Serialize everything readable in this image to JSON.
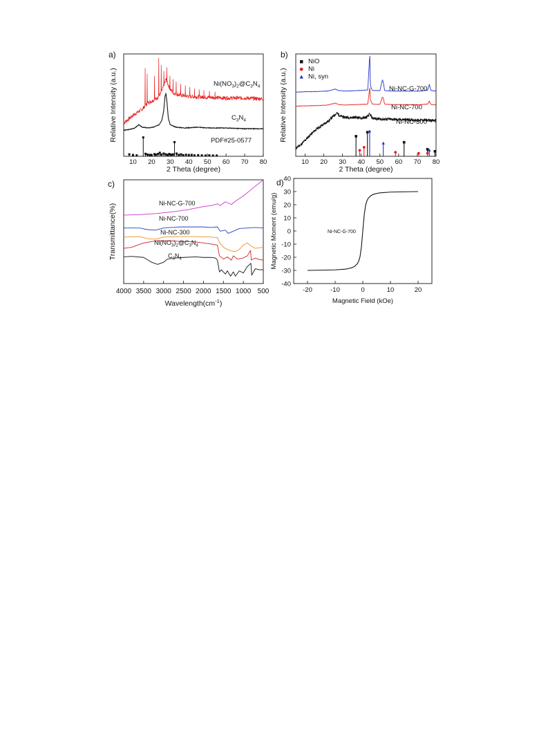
{
  "chart_data": [
    {
      "panel": "a)",
      "type": "line",
      "xlabel": "2 Theta (degree)",
      "ylabel": "Relative Intensity (a.u.)",
      "xlim": [
        5,
        80
      ],
      "xticks": [
        10,
        20,
        30,
        40,
        50,
        60,
        70,
        80
      ],
      "series": [
        {
          "name": "Ni(NO3)2@C3N4",
          "label_main": "Ni(NO",
          "label_sub1": "3",
          "label_mid": ")",
          "label_sub2": "2",
          "label_tail": "@C",
          "label_sub3": "3",
          "label_end": "N",
          "label_sub4": "4",
          "color": "#e8201f",
          "x": [
            5,
            10,
            15,
            18,
            20,
            23,
            25,
            26,
            27,
            27.7,
            28.5,
            30,
            32,
            35,
            40,
            50,
            60,
            70,
            80
          ],
          "y": [
            0.42,
            0.52,
            0.6,
            0.68,
            0.7,
            0.74,
            0.8,
            0.86,
            0.93,
            0.98,
            0.93,
            0.85,
            0.8,
            0.78,
            0.76,
            0.75,
            0.74,
            0.74,
            0.73
          ],
          "spikes": [
            [
              16.5,
              1.12
            ],
            [
              17.5,
              1.05
            ],
            [
              21.5,
              1.02
            ],
            [
              23.8,
              1.25
            ],
            [
              25.1,
              1.16
            ],
            [
              26.5,
              1.08
            ],
            [
              28.1,
              1.13
            ],
            [
              29.8,
              1.02
            ],
            [
              31.5,
              0.98
            ],
            [
              33.2,
              0.95
            ],
            [
              35.5,
              0.92
            ],
            [
              38.0,
              0.9
            ],
            [
              40.5,
              0.88
            ],
            [
              43.0,
              0.86
            ],
            [
              45.5,
              0.85
            ],
            [
              48.0,
              0.84
            ],
            [
              51.0,
              0.83
            ],
            [
              54.0,
              0.82
            ]
          ]
        },
        {
          "name": "C3N4",
          "label_main": "C",
          "label_sub1": "3",
          "label_end": "N",
          "label_sub4": "4",
          "color": "#111111",
          "x": [
            5,
            8,
            11,
            13,
            15,
            18,
            21,
            24,
            25.5,
            26.5,
            27.2,
            27.7,
            28.2,
            29,
            30,
            33,
            38,
            45,
            50,
            60,
            70,
            80
          ],
          "y": [
            0.33,
            0.34,
            0.36,
            0.4,
            0.37,
            0.36,
            0.37,
            0.4,
            0.46,
            0.58,
            0.76,
            0.8,
            0.7,
            0.48,
            0.4,
            0.37,
            0.36,
            0.37,
            0.36,
            0.36,
            0.35,
            0.35
          ]
        }
      ],
      "reference": {
        "name": "PDF#25-0577",
        "x": [
          8,
          10,
          12,
          15.5,
          16.7,
          17.8,
          19,
          20,
          21.5,
          22.3,
          23.4,
          24.4,
          25.3,
          26.5,
          27.6,
          28.6,
          29.5,
          30.6,
          31.5,
          32.3,
          33.4,
          34.6,
          35.8,
          37,
          38.5,
          40,
          41.5,
          43,
          45,
          47,
          49,
          51,
          53,
          55
        ],
        "y": [
          0.025,
          0.015,
          0.012,
          0.24,
          0.032,
          0.022,
          0.018,
          0.014,
          0.028,
          0.02,
          0.03,
          0.045,
          0.022,
          0.035,
          0.025,
          0.018,
          0.03,
          0.02,
          0.025,
          0.18,
          0.035,
          0.018,
          0.025,
          0.015,
          0.02,
          0.015,
          0.018,
          0.012,
          0.015,
          0.012,
          0.01,
          0.012,
          0.01,
          0.01
        ]
      }
    },
    {
      "panel": "b)",
      "type": "line",
      "xlabel": "2 Theta (degree)",
      "ylabel": "Relative Intensity (a.u.)",
      "xlim": [
        5,
        80
      ],
      "xticks": [
        10,
        20,
        30,
        40,
        50,
        60,
        70,
        80
      ],
      "legend": [
        {
          "label": "NiO",
          "marker": "square",
          "color": "#111111"
        },
        {
          "label": "Ni",
          "marker": "circle",
          "color": "#e8201f"
        },
        {
          "label": "Ni, syn",
          "marker": "triangle",
          "color": "#2233cc"
        }
      ],
      "series": [
        {
          "name": "Ni-NC-G-700",
          "color": "#2233cc",
          "x": [
            5,
            15,
            22,
            26,
            28,
            32,
            38,
            43.5,
            44.2,
            44.5,
            44.9,
            46,
            50,
            51.3,
            51.8,
            52.5,
            56,
            65,
            72,
            75.5,
            76.4,
            77.3,
            80
          ],
          "y": [
            0.64,
            0.645,
            0.65,
            0.67,
            0.655,
            0.65,
            0.655,
            0.66,
            0.9,
            1.0,
            0.7,
            0.655,
            0.655,
            0.76,
            0.74,
            0.655,
            0.65,
            0.65,
            0.65,
            0.66,
            0.715,
            0.655,
            0.65
          ]
        },
        {
          "name": "Ni-NC-700",
          "color": "#e8201f",
          "x": [
            5,
            15,
            22,
            26,
            28,
            32,
            38,
            43.5,
            44.2,
            44.5,
            44.9,
            46,
            50,
            51.3,
            51.8,
            52.5,
            56,
            65,
            72,
            75.5,
            76.4,
            77.3,
            80
          ],
          "y": [
            0.5,
            0.505,
            0.51,
            0.53,
            0.515,
            0.512,
            0.515,
            0.52,
            0.63,
            0.68,
            0.56,
            0.52,
            0.518,
            0.59,
            0.58,
            0.52,
            0.515,
            0.515,
            0.515,
            0.52,
            0.55,
            0.515,
            0.512
          ]
        },
        {
          "name": "Ni-NC-300",
          "color": "#111111",
          "x": [
            5,
            8,
            12,
            16,
            20,
            23,
            25,
            27,
            29,
            31,
            34,
            37,
            40,
            43,
            44.5,
            46,
            50,
            55,
            60,
            65,
            70,
            75,
            80
          ],
          "y": [
            0.08,
            0.12,
            0.2,
            0.27,
            0.32,
            0.36,
            0.4,
            0.43,
            0.4,
            0.39,
            0.385,
            0.39,
            0.38,
            0.39,
            0.42,
            0.38,
            0.37,
            0.37,
            0.365,
            0.365,
            0.36,
            0.36,
            0.355
          ]
        }
      ],
      "reference_NiO": {
        "x": [
          37.2,
          43.3,
          62.9,
          75.4,
          79.4
        ],
        "y": [
          0.2,
          0.24,
          0.14,
          0.07,
          0.05
        ]
      },
      "reference_Ni": {
        "x": [
          39.2,
          41.5,
          58.3,
          70.7,
          75.4
        ],
        "y": [
          0.06,
          0.09,
          0.04,
          0.03,
          0.03
        ]
      },
      "reference_Ni_syn": {
        "x": [
          44.5,
          51.8,
          76.4
        ],
        "y": [
          0.25,
          0.13,
          0.06
        ]
      }
    },
    {
      "panel": "c)",
      "type": "line",
      "xlabel": "Wavelength(cm",
      "xlabel_sup": "-1",
      "xlabel_end": ")",
      "ylabel": "Transmittance(%)",
      "xlim": [
        4000,
        500
      ],
      "xticks": [
        4000,
        3500,
        3000,
        2500,
        2000,
        1500,
        1000,
        500
      ],
      "series": [
        {
          "name": "Ni-NC-G-700",
          "color": "#cc33cc",
          "x": [
            4000,
            3600,
            3200,
            2800,
            2400,
            2000,
            1800,
            1650,
            1580,
            1450,
            1300,
            1200,
            1000,
            800,
            600,
            500
          ],
          "y": [
            0.56,
            0.565,
            0.575,
            0.59,
            0.61,
            0.64,
            0.65,
            0.665,
            0.65,
            0.685,
            0.66,
            0.69,
            0.74,
            0.8,
            0.86,
            0.89
          ]
        },
        {
          "name": "Ni-NC-700",
          "color": "#2244bb",
          "x": [
            4000,
            3600,
            3400,
            3200,
            3000,
            2600,
            2200,
            2000,
            1800,
            1650,
            1580,
            1450,
            1380,
            1250,
            1100,
            900,
            700,
            500
          ],
          "y": [
            0.44,
            0.44,
            0.425,
            0.42,
            0.44,
            0.45,
            0.45,
            0.45,
            0.445,
            0.45,
            0.41,
            0.42,
            0.39,
            0.41,
            0.435,
            0.44,
            0.445,
            0.44
          ]
        },
        {
          "name": "Ni-NC-300",
          "color": "#e89020",
          "x": [
            4000,
            3600,
            3400,
            3200,
            3000,
            2600,
            2200,
            1800,
            1650,
            1600,
            1500,
            1400,
            1300,
            1200,
            1100,
            1000,
            900,
            800,
            700,
            600,
            500
          ],
          "y": [
            0.355,
            0.36,
            0.34,
            0.335,
            0.355,
            0.36,
            0.36,
            0.355,
            0.35,
            0.305,
            0.26,
            0.24,
            0.225,
            0.22,
            0.24,
            0.28,
            0.3,
            0.27,
            0.25,
            0.255,
            0.26
          ]
        },
        {
          "name": "Ni(NO3)2@C3N4",
          "label_main": "Ni(NO",
          "label_sub1": "3",
          "label_mid": ")",
          "label_sub2": "2",
          "label_tail": "@C",
          "label_sub3": "3",
          "label_end": "N",
          "label_sub4": "4",
          "color": "#cc2222",
          "x": [
            4000,
            3800,
            3500,
            3200,
            3000,
            2800,
            2600,
            2200,
            2000,
            1800,
            1650,
            1600,
            1500,
            1400,
            1300,
            1250,
            1150,
            1000,
            900,
            820,
            800,
            700,
            600,
            500
          ],
          "y": [
            0.25,
            0.26,
            0.3,
            0.32,
            0.32,
            0.32,
            0.315,
            0.31,
            0.3,
            0.29,
            0.28,
            0.18,
            0.15,
            0.17,
            0.14,
            0.18,
            0.15,
            0.16,
            0.18,
            0.23,
            0.14,
            0.16,
            0.145,
            0.14
          ]
        },
        {
          "name": "C3N4",
          "label_main": "C",
          "label_sub1": "3",
          "label_end": "N",
          "label_sub4": "4",
          "color": "#111111",
          "x": [
            4000,
            3800,
            3500,
            3300,
            3150,
            3000,
            2900,
            2700,
            2500,
            2200,
            2000,
            1800,
            1700,
            1650,
            1600,
            1550,
            1450,
            1400,
            1320,
            1250,
            1200,
            1100,
            1000,
            900,
            810,
            790,
            700,
            600,
            500
          ],
          "y": [
            0.17,
            0.175,
            0.165,
            0.12,
            0.1,
            0.12,
            0.15,
            0.16,
            0.165,
            0.17,
            0.165,
            0.165,
            0.16,
            0.14,
            0.03,
            0.05,
            0.01,
            0.04,
            -0.01,
            0.03,
            -0.01,
            0.04,
            0.02,
            0.08,
            0.11,
            0.0,
            0.06,
            0.05,
            0.05
          ]
        }
      ]
    },
    {
      "panel": "d)",
      "type": "line",
      "xlabel": "Magnetic Field (kOe)",
      "ylabel": "Magnetic Moment (emu/g)",
      "xlim": [
        -25,
        25
      ],
      "ylim": [
        -40,
        40
      ],
      "xticks": [
        -20,
        -10,
        0,
        10,
        20
      ],
      "yticks": [
        -40,
        -30,
        -20,
        -10,
        0,
        10,
        20,
        30,
        40
      ],
      "series": [
        {
          "name": "Ni-NC-G-700",
          "color": "#111111",
          "x": [
            -20,
            -10,
            -6,
            -4,
            -3,
            -2,
            -1.5,
            -1,
            -0.5,
            0,
            0.5,
            1,
            1.5,
            2,
            3,
            4,
            6,
            10,
            20
          ],
          "y": [
            -30,
            -29.6,
            -29,
            -28,
            -27,
            -25,
            -23,
            -19.5,
            -12,
            0,
            12,
            19.5,
            23,
            25,
            27,
            28,
            29,
            29.6,
            30
          ]
        }
      ]
    }
  ]
}
